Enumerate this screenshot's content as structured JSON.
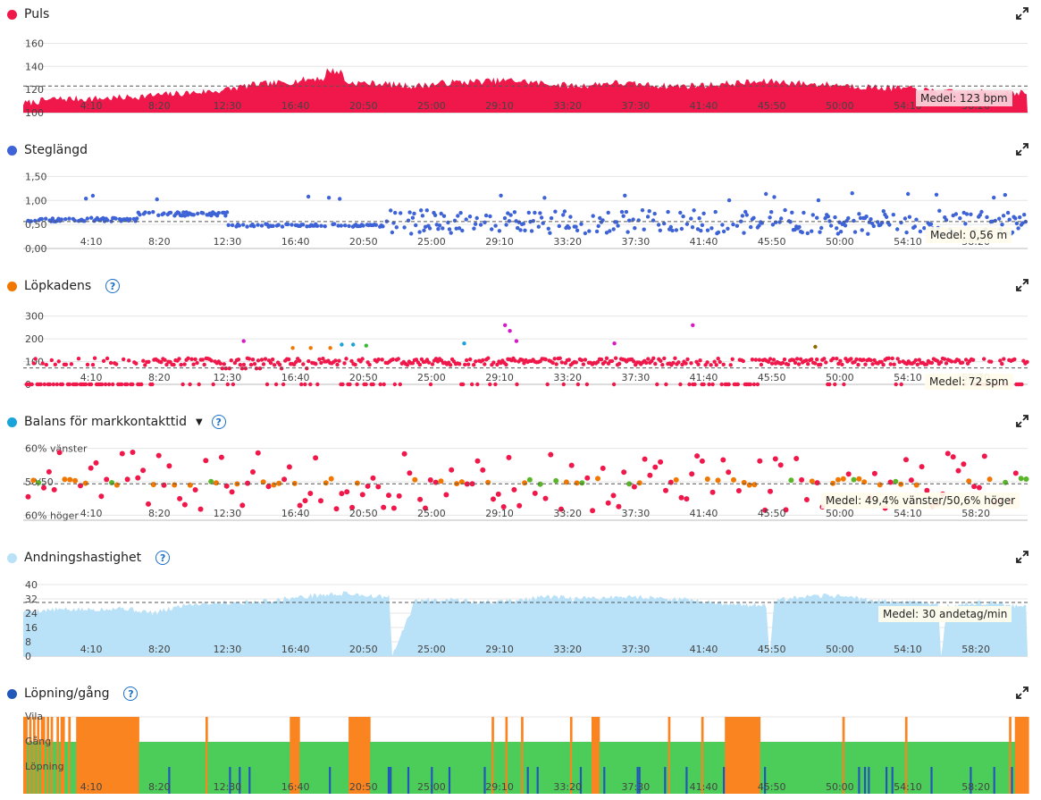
{
  "x_ticks": [
    "4:10",
    "8:20",
    "12:30",
    "16:40",
    "20:50",
    "25:00",
    "29:10",
    "33:20",
    "37:30",
    "41:40",
    "45:50",
    "50:00",
    "54:10",
    "58:20"
  ],
  "colors": {
    "heart": "#f0184a",
    "stride": "#3e63d6",
    "cadence": "#f07800",
    "balance": "#1aa3d9",
    "resp": "#b9e1f7",
    "walk": "#2158b8",
    "walk_green": "#4ccd5a",
    "walk_orange": "#fa8420",
    "grid": "#e6e6e6"
  },
  "panels": {
    "heart": {
      "title": "Puls",
      "icon": "expand-icon",
      "average": "Medel: 123 bpm"
    },
    "stride": {
      "title": "Steglängd",
      "icon": "expand-icon",
      "average": "Medel: 0,56 m"
    },
    "cadence": {
      "title": "Löpkadens",
      "help": "?",
      "average": "Medel: 72 spm"
    },
    "balance": {
      "title": "Balans för markkontakttid",
      "help": "?",
      "average": "Medel: 49,4% vänster/50,6% höger"
    },
    "resp": {
      "title": "Andningshastighet",
      "help": "?",
      "average": "Medel: 30 andetag/min"
    },
    "walk": {
      "title": "Löpning/gång",
      "help": "?"
    }
  },
  "chart_data": [
    {
      "type": "area",
      "name": "Puls",
      "ylim": [
        100,
        165
      ],
      "yticks": [
        "160",
        "140",
        "120",
        "100"
      ],
      "ytick_values": [
        160,
        140,
        120,
        100
      ],
      "average": 123,
      "x_minutes": [
        0,
        2,
        4,
        6,
        8,
        10,
        12,
        14,
        16,
        18,
        20,
        22,
        24,
        26,
        28,
        30,
        32,
        34,
        36,
        38,
        40,
        42,
        44,
        46,
        48,
        50,
        52,
        54,
        56,
        58,
        60,
        61.5
      ],
      "values": [
        108,
        112,
        112,
        113,
        115,
        117,
        119,
        124,
        126,
        130,
        126,
        125,
        123,
        126,
        127,
        128,
        125,
        123,
        126,
        124,
        123,
        124,
        126,
        127,
        125,
        124,
        122,
        121,
        118,
        117,
        118,
        117
      ]
    },
    {
      "type": "scatter",
      "name": "Steglängd",
      "ylim": [
        0,
        1.6
      ],
      "yticks": [
        "1,50",
        "1,00",
        "0,50",
        "0,00"
      ],
      "ytick_values": [
        1.5,
        1.0,
        0.5,
        0.0
      ],
      "average": 0.56
    },
    {
      "type": "scatter",
      "name": "Löpkadens",
      "ylim": [
        0,
        330
      ],
      "yticks": [
        "300",
        "200",
        "100",
        "0"
      ],
      "ytick_values": [
        300,
        200,
        100,
        0
      ],
      "average": 72
    },
    {
      "type": "scatter",
      "name": "Balans för markkontakttid",
      "yticks": [
        "60% vänster",
        "50/50",
        "60% höger"
      ],
      "ytick_values": [
        60,
        50,
        40
      ],
      "ylim": [
        38.5,
        61.5
      ],
      "average": 49.4
    },
    {
      "type": "area",
      "name": "Andningshastighet",
      "ylim": [
        0,
        42
      ],
      "yticks": [
        "40",
        "32",
        "24",
        "16",
        "8",
        "0"
      ],
      "ytick_values": [
        40,
        32,
        24,
        16,
        8,
        0
      ],
      "average": 30,
      "x_minutes": [
        0,
        2,
        4,
        6,
        8,
        10,
        12,
        14,
        16,
        18,
        20,
        22,
        22.4,
        22.6,
        24,
        26,
        28,
        30,
        32,
        34,
        36,
        38,
        40,
        42,
        44,
        45.5,
        45.7,
        46,
        48,
        50,
        52,
        54,
        56,
        56.2,
        56.6,
        58,
        60,
        61.5
      ],
      "values": [
        25,
        26,
        26,
        27,
        24,
        29,
        30,
        30,
        32,
        34,
        35,
        33,
        33,
        0,
        31,
        32,
        30,
        31,
        33,
        32,
        33,
        33,
        32,
        30,
        29,
        28,
        0,
        31,
        33,
        34,
        31,
        30,
        30,
        0,
        28,
        30,
        29,
        27
      ]
    },
    {
      "type": "bar",
      "name": "Löpning/gång",
      "categories": [
        "Vila",
        "Gång",
        "Löpning"
      ]
    }
  ]
}
